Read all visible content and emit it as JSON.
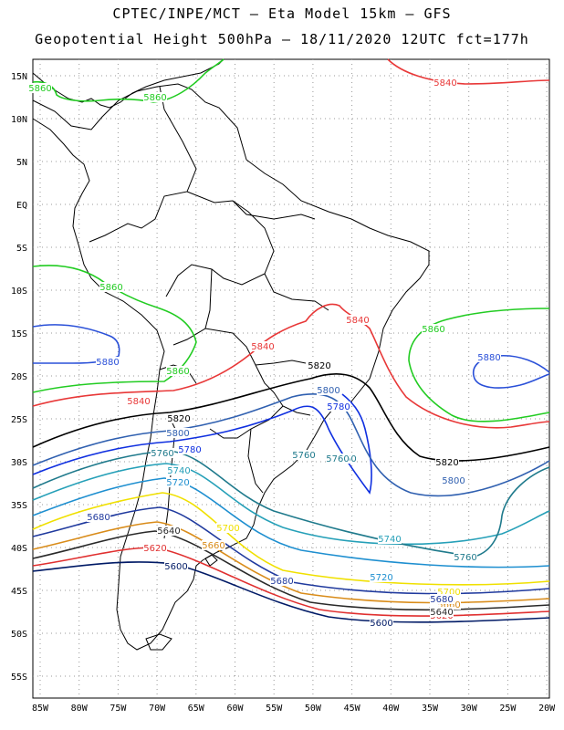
{
  "title_line1": "CPTEC/INPE/MCT –  Eta Model 15km – GFS",
  "title_line2": "Geopotential Height 500hPa – 18/11/2020 12UTC fct=177h",
  "lat_labels": [
    "15N",
    "10N",
    "5N",
    "EQ",
    "5S",
    "10S",
    "15S",
    "20S",
    "25S",
    "30S",
    "35S",
    "40S",
    "45S",
    "50S",
    "55S"
  ],
  "lon_labels": [
    "85W",
    "80W",
    "75W",
    "70W",
    "65W",
    "60W",
    "55W",
    "50W",
    "45W",
    "40W",
    "35W",
    "30W",
    "25W",
    "20W"
  ],
  "colors": {
    "c5600": "#001a66",
    "c5620": "#e03030",
    "c5640": "#2a2a2a",
    "c5660": "#d98c1a",
    "c5680": "#203a9e",
    "c5700": "#f0e000",
    "c5720": "#1e8fd0",
    "c5740": "#26a0b8",
    "c5760": "#1f7a8c",
    "c5780": "#1030e0",
    "c5800": "#3060b0",
    "c5820": "#000000",
    "c5840": "#e83838",
    "c5860": "#22cc22",
    "c5880": "#2a50d8"
  },
  "contour_labels": [
    {
      "text": "5860",
      "color": "#22cc22"
    },
    {
      "text": "5860",
      "color": "#22cc22"
    },
    {
      "text": "5860",
      "color": "#22cc22"
    },
    {
      "text": "5860",
      "color": "#22cc22"
    },
    {
      "text": "5860",
      "color": "#22cc22"
    },
    {
      "text": "5840",
      "color": "#e83838"
    },
    {
      "text": "5840",
      "color": "#e83838"
    },
    {
      "text": "5840",
      "color": "#e83838"
    },
    {
      "text": "5840",
      "color": "#e83838"
    },
    {
      "text": "5880",
      "color": "#2a50d8"
    },
    {
      "text": "5880",
      "color": "#2a50d8"
    },
    {
      "text": "5820",
      "color": "#000000"
    },
    {
      "text": "5820",
      "color": "#000000"
    },
    {
      "text": "5820",
      "color": "#000000"
    },
    {
      "text": "5800",
      "color": "#3060b0"
    },
    {
      "text": "5800",
      "color": "#3060b0"
    },
    {
      "text": "5800",
      "color": "#3060b0"
    },
    {
      "text": "5780",
      "color": "#1030e0"
    },
    {
      "text": "5780",
      "color": "#1030e0"
    },
    {
      "text": "5760",
      "color": "#1f7a8c"
    },
    {
      "text": "5760",
      "color": "#1f7a8c"
    },
    {
      "text": "5760",
      "color": "#1f7a8c"
    },
    {
      "text": "5760",
      "color": "#1f7a8c"
    },
    {
      "text": "5740",
      "color": "#26a0b8"
    },
    {
      "text": "5740",
      "color": "#26a0b8"
    },
    {
      "text": "5720",
      "color": "#1e8fd0"
    },
    {
      "text": "5720",
      "color": "#1e8fd0"
    },
    {
      "text": "5700",
      "color": "#f0e000"
    },
    {
      "text": "5700",
      "color": "#f0e000"
    },
    {
      "text": "5680",
      "color": "#203a9e"
    },
    {
      "text": "5680",
      "color": "#203a9e"
    },
    {
      "text": "5660",
      "color": "#d98c1a"
    },
    {
      "text": "5660",
      "color": "#d98c1a"
    },
    {
      "text": "5640",
      "color": "#2a2a2a"
    },
    {
      "text": "5620",
      "color": "#e03030"
    },
    {
      "text": "5620",
      "color": "#e03030"
    },
    {
      "text": "5600",
      "color": "#001a66"
    },
    {
      "text": "5600",
      "color": "#001a66"
    },
    {
      "text": "5640",
      "color": "#2a2a2a"
    },
    {
      "text": "5680",
      "color": "#203a9e"
    },
    {
      "text": "5760",
      "color": "#1f7a8c"
    }
  ]
}
